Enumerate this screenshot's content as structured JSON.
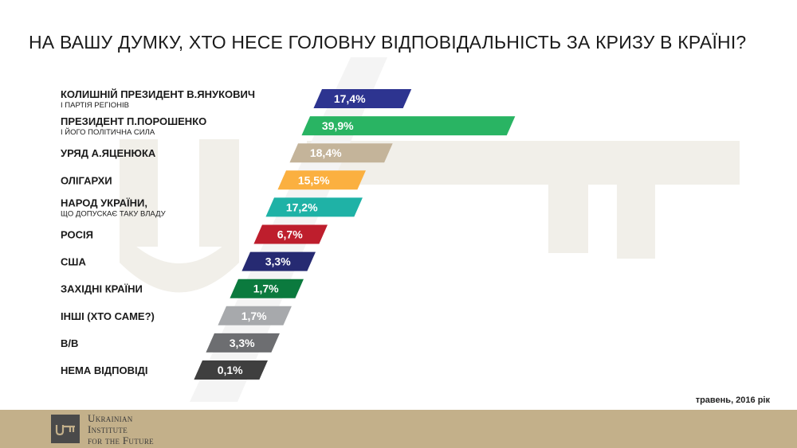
{
  "title": "НА ВАШУ ДУМКУ, ХТО НЕСЕ ГОЛОВНУ ВІДПОВІДАЛЬНІСТЬ ЗА КРИЗУ В КРАЇНІ?",
  "date_note": "травень, 2016 рік",
  "footer": {
    "org_line1": "Ukrainian",
    "org_line2": "Institute",
    "org_line3": "for the Future",
    "logo_icon": "key-icon"
  },
  "chart_data": {
    "type": "bar",
    "orientation": "horizontal",
    "unit": "%",
    "categories": [
      {
        "label": "КОЛИШНІЙ ПРЕЗИДЕНТ В.ЯНУКОВИЧ",
        "sublabel": "І ПАРТІЯ РЕГІОНІВ"
      },
      {
        "label": "ПРЕЗИДЕНТ П.ПОРОШЕНКО",
        "sublabel": "І ЙОГО ПОЛІТИЧНА СИЛА"
      },
      {
        "label": "УРЯД А.ЯЦЕНЮКА",
        "sublabel": ""
      },
      {
        "label": "ОЛІГАРХИ",
        "sublabel": ""
      },
      {
        "label": "НАРОД УКРАЇНИ,",
        "sublabel": "ЩО ДОПУСКАЄ ТАКУ ВЛАДУ"
      },
      {
        "label": "РОСІЯ",
        "sublabel": ""
      },
      {
        "label": "США",
        "sublabel": ""
      },
      {
        "label": "ЗАХІДНІ КРАЇНИ",
        "sublabel": ""
      },
      {
        "label": "ІНШІ (ХТО САМЕ?)",
        "sublabel": ""
      },
      {
        "label": "В/В",
        "sublabel": ""
      },
      {
        "label": "НЕМА ВІДПОВІДІ",
        "sublabel": ""
      }
    ],
    "values": [
      17.4,
      39.9,
      18.4,
      15.5,
      17.2,
      6.7,
      3.3,
      1.7,
      1.7,
      3.3,
      0.1
    ],
    "value_labels": [
      "17,4%",
      "39,9%",
      "18,4%",
      "15,5%",
      "17,2%",
      "6,7%",
      "3,3%",
      "1,7%",
      "1,7%",
      "3,3%",
      "0,1%"
    ],
    "colors": [
      "#2d3490",
      "#29b463",
      "#c4b49a",
      "#fbb040",
      "#1fb2a6",
      "#be1e2d",
      "#262a72",
      "#0b7a3e",
      "#a7a9ac",
      "#6d6e71",
      "#3f3f3f"
    ]
  }
}
